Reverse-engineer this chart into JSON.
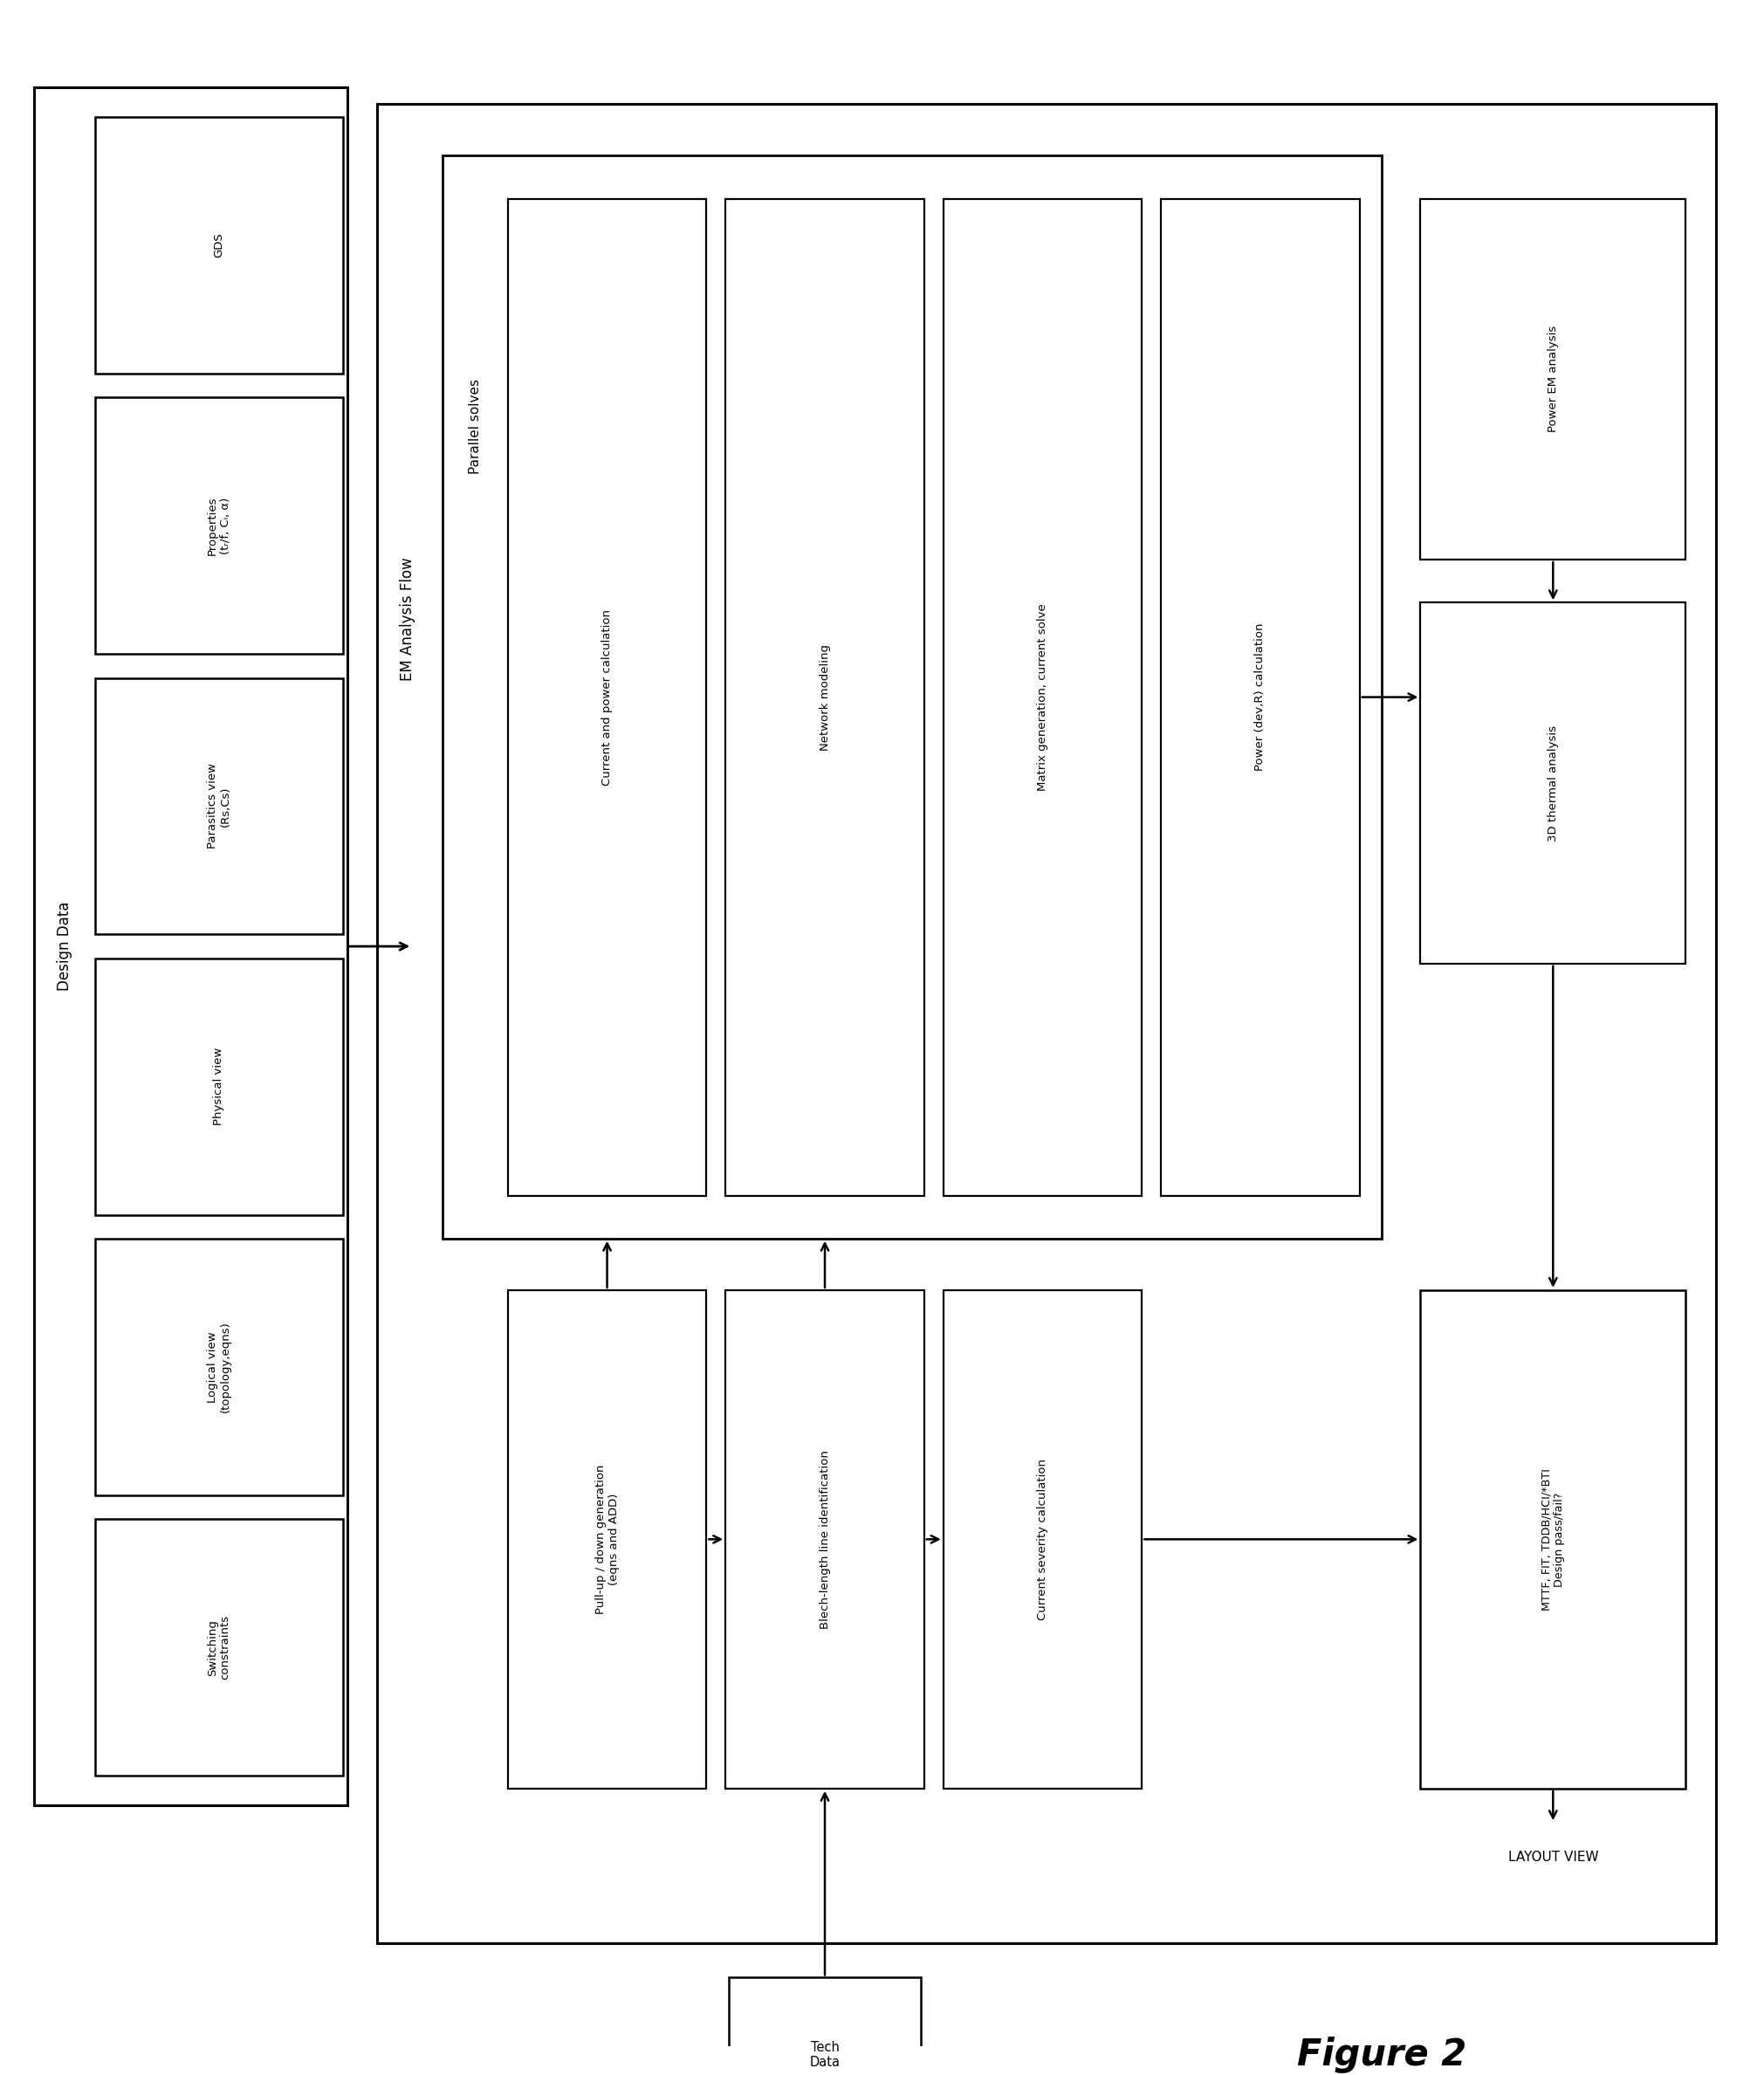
{
  "bg_color": "#ffffff",
  "line_color": "#000000",
  "figure_label": "Figure 2",
  "design_data_label": "Design Data",
  "left_boxes": [
    "GDS",
    "Properties\n(tᵣ/f, Cₗ, α)",
    "Parasitics view\n(Rs,Cs)",
    "Physical view",
    "Logical view\n(topology,eqns)",
    "Switching\nconstraints"
  ],
  "em_flow_label": "EM Analysis Flow",
  "parallel_solves_label": "Parallel solves",
  "upper_inner_boxes": [
    "Current and power calculation",
    "Network modeling",
    "Matrix generation, current solve",
    "Power (dev,R) calculation"
  ],
  "lower_boxes": [
    "Pull-up / down generation\n(eqns and ADD)",
    "Blech-length line identification",
    "Current severity calculation"
  ],
  "right_boxes_upper": [
    "Power EM analysis",
    "3D thermal analysis"
  ],
  "right_box_lower": "MTTF, FIT, TDDB/HCI/*BTI\nDesign pass/fail?",
  "layout_view_label": "LAYOUT VIEW",
  "tech_data_label": "Tech\nData"
}
